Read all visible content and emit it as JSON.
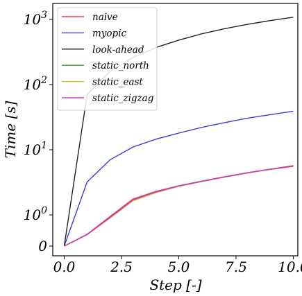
{
  "chart_data": {
    "type": "line",
    "xlabel": "Step [-]",
    "ylabel": "Time [s]",
    "xlim": [
      -0.5,
      10.2
    ],
    "x_ticks": [
      0.0,
      2.5,
      5.0,
      7.5,
      10.0
    ],
    "x_tick_labels": [
      "0.0",
      "2.5",
      "5.0",
      "7.5",
      "10.0"
    ],
    "y_scale": "symlog",
    "y_ticks": [
      0,
      1,
      10,
      100,
      1000
    ],
    "y_tick_labels": [
      {
        "base": "0",
        "exp": ""
      },
      {
        "base": "10",
        "exp": "0"
      },
      {
        "base": "10",
        "exp": "1"
      },
      {
        "base": "10",
        "exp": "2"
      },
      {
        "base": "10",
        "exp": "3"
      }
    ],
    "grid": false,
    "legend_position": "top-left",
    "x": [
      0,
      1,
      2,
      3,
      4,
      5,
      6,
      7,
      8,
      9,
      10
    ],
    "series": [
      {
        "name": "naive",
        "color": "#e8414e",
        "values": [
          0,
          0.38,
          0.95,
          1.75,
          2.3,
          2.8,
          3.3,
          3.85,
          4.45,
          5.05,
          5.7
        ]
      },
      {
        "name": "myopic",
        "color": "#3b3bd9",
        "values": [
          0,
          3.2,
          7.0,
          11.0,
          14.5,
          18.0,
          22.0,
          26.0,
          30.5,
          34.5,
          39.0
        ]
      },
      {
        "name": "look-ahead",
        "color": "#222222",
        "values": [
          0,
          70,
          160,
          260,
          370,
          480,
          600,
          720,
          840,
          960,
          1080
        ]
      },
      {
        "name": "static_north",
        "color": "#2e9e2e",
        "values": [
          0,
          0.37,
          0.9,
          1.65,
          2.2,
          2.75,
          3.25,
          3.8,
          4.4,
          5.0,
          5.55
        ]
      },
      {
        "name": "static_east",
        "color": "#c9c21f",
        "values": [
          0,
          0.37,
          0.9,
          1.65,
          2.2,
          2.75,
          3.25,
          3.8,
          4.4,
          5.0,
          5.55
        ]
      },
      {
        "name": "static_zigzag",
        "color": "#cc33cc",
        "values": [
          0,
          0.37,
          0.92,
          1.7,
          2.25,
          2.78,
          3.28,
          3.82,
          4.42,
          5.02,
          5.6
        ]
      }
    ]
  }
}
